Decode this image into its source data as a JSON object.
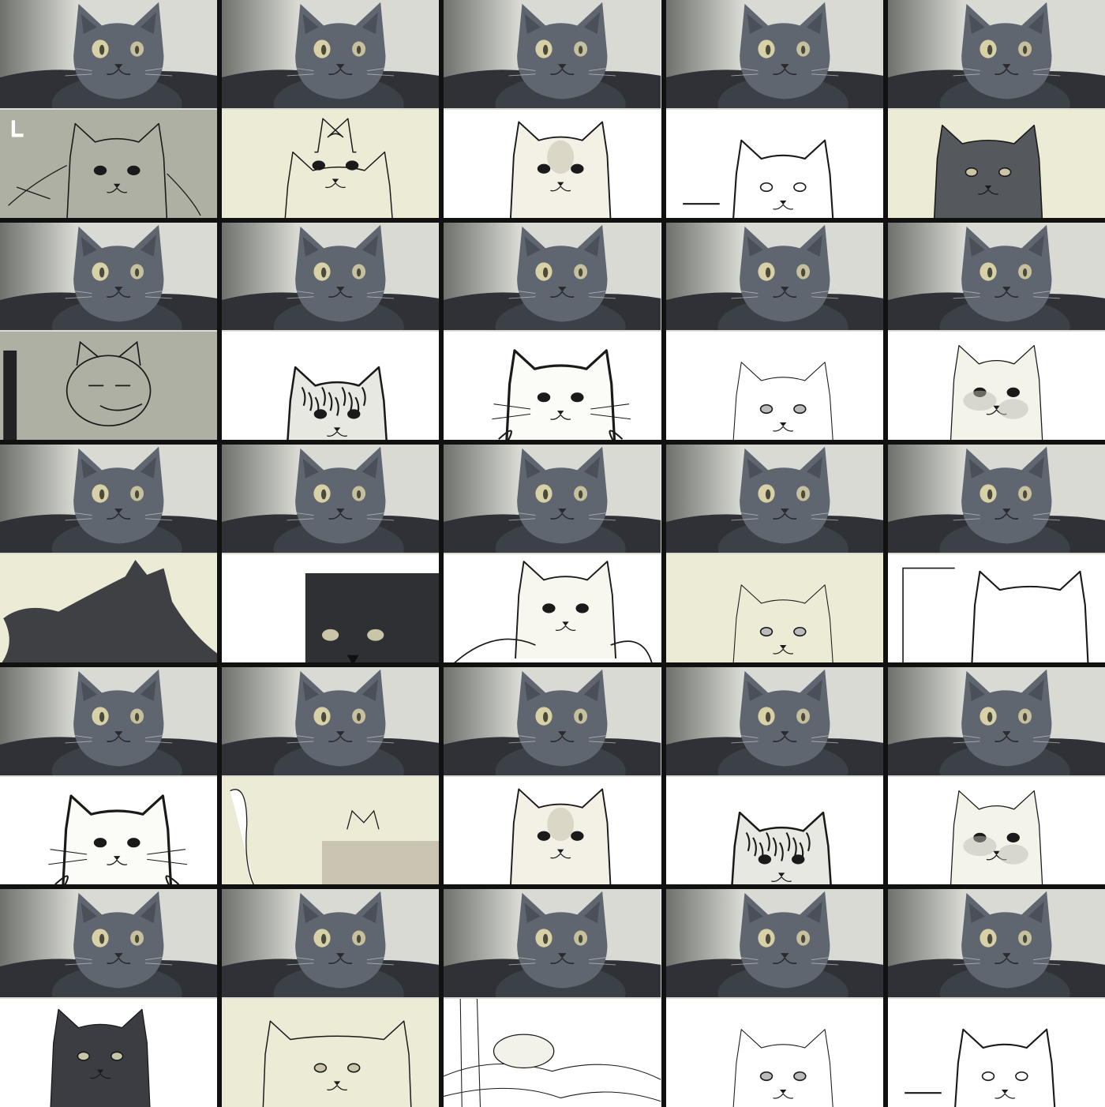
{
  "colors": {
    "grid_gutter": "#111111",
    "photo_bg_light": "#d9dad4",
    "photo_bg_dark": "#6e716c",
    "cat_fur": "#5f6670",
    "cat_fur_dark": "#3c4047",
    "eye": "#d8d0a6",
    "sketch_paper_white": "#ffffff",
    "sketch_paper_cream": "#ecebd6",
    "sketch_paper_grey": "#aeb0a4",
    "ink": "#1a1a1a"
  },
  "grid": {
    "rows": 5,
    "cols": 5
  },
  "tiles": [
    {
      "photo": "cat-photo",
      "sketch": {
        "style": "rough-scribble",
        "paper": "grey",
        "ink_fill": "none"
      }
    },
    {
      "photo": "cat-photo",
      "sketch": {
        "style": "two-cats-outline",
        "paper": "cream",
        "ink_fill": "none"
      }
    },
    {
      "photo": "cat-photo",
      "sketch": {
        "style": "shaded-white-cat",
        "paper": "white",
        "ink_fill": "light"
      }
    },
    {
      "photo": "cat-photo",
      "sketch": {
        "style": "minimal-outline",
        "paper": "white",
        "ink_fill": "none"
      }
    },
    {
      "photo": "cat-photo",
      "sketch": {
        "style": "dark-silhouette-glyph",
        "paper": "cream",
        "ink_fill": "dark"
      }
    },
    {
      "photo": "cat-photo",
      "sketch": {
        "style": "round-face-outline",
        "paper": "grey",
        "ink_fill": "none"
      }
    },
    {
      "photo": "cat-photo",
      "sketch": {
        "style": "dense-ink-cat",
        "paper": "white",
        "ink_fill": "mixed"
      }
    },
    {
      "photo": "cat-photo",
      "sketch": {
        "style": "bold-outline-cat",
        "paper": "white",
        "ink_fill": "light"
      }
    },
    {
      "photo": "cat-photo",
      "sketch": {
        "style": "faint-outline",
        "paper": "white",
        "ink_fill": "none"
      }
    },
    {
      "photo": "cat-photo",
      "sketch": {
        "style": "detailed-shaded",
        "paper": "white",
        "ink_fill": "light"
      }
    },
    {
      "photo": "cat-photo",
      "sketch": {
        "style": "lying-silhouette",
        "paper": "cream",
        "ink_fill": "dark"
      }
    },
    {
      "photo": "cat-photo",
      "sketch": {
        "style": "dark-box-cat",
        "paper": "white",
        "ink_fill": "dark"
      }
    },
    {
      "photo": "cat-photo",
      "sketch": {
        "style": "fluffy-outline",
        "paper": "white",
        "ink_fill": "light"
      }
    },
    {
      "photo": "cat-photo",
      "sketch": {
        "style": "faint-outline",
        "paper": "cream",
        "ink_fill": "none"
      }
    },
    {
      "photo": "cat-photo",
      "sketch": {
        "style": "minimal-ears",
        "paper": "white",
        "ink_fill": "none"
      }
    },
    {
      "photo": "cat-photo",
      "sketch": {
        "style": "bold-outline-cat",
        "paper": "white",
        "ink_fill": "none"
      }
    },
    {
      "photo": "cat-photo",
      "sketch": {
        "style": "scribble-glyphs",
        "paper": "cream",
        "ink_fill": "mixed"
      }
    },
    {
      "photo": "cat-photo",
      "sketch": {
        "style": "shaded-white-cat",
        "paper": "white",
        "ink_fill": "light"
      }
    },
    {
      "photo": "cat-photo",
      "sketch": {
        "style": "dense-ink-cat",
        "paper": "white",
        "ink_fill": "mixed"
      }
    },
    {
      "photo": "cat-photo",
      "sketch": {
        "style": "detailed-shaded",
        "paper": "white",
        "ink_fill": "light"
      }
    },
    {
      "photo": "cat-photo",
      "sketch": {
        "style": "dark-cat-portrait",
        "paper": "white",
        "ink_fill": "dark"
      }
    },
    {
      "photo": "cat-photo",
      "sketch": {
        "style": "close-face-outline",
        "paper": "cream",
        "ink_fill": "none"
      }
    },
    {
      "photo": "cat-photo",
      "sketch": {
        "style": "messy-lines",
        "paper": "white",
        "ink_fill": "none"
      }
    },
    {
      "photo": "cat-photo",
      "sketch": {
        "style": "faint-outline",
        "paper": "white",
        "ink_fill": "light"
      }
    },
    {
      "photo": "cat-photo",
      "sketch": {
        "style": "minimal-outline",
        "paper": "white",
        "ink_fill": "none"
      }
    }
  ]
}
